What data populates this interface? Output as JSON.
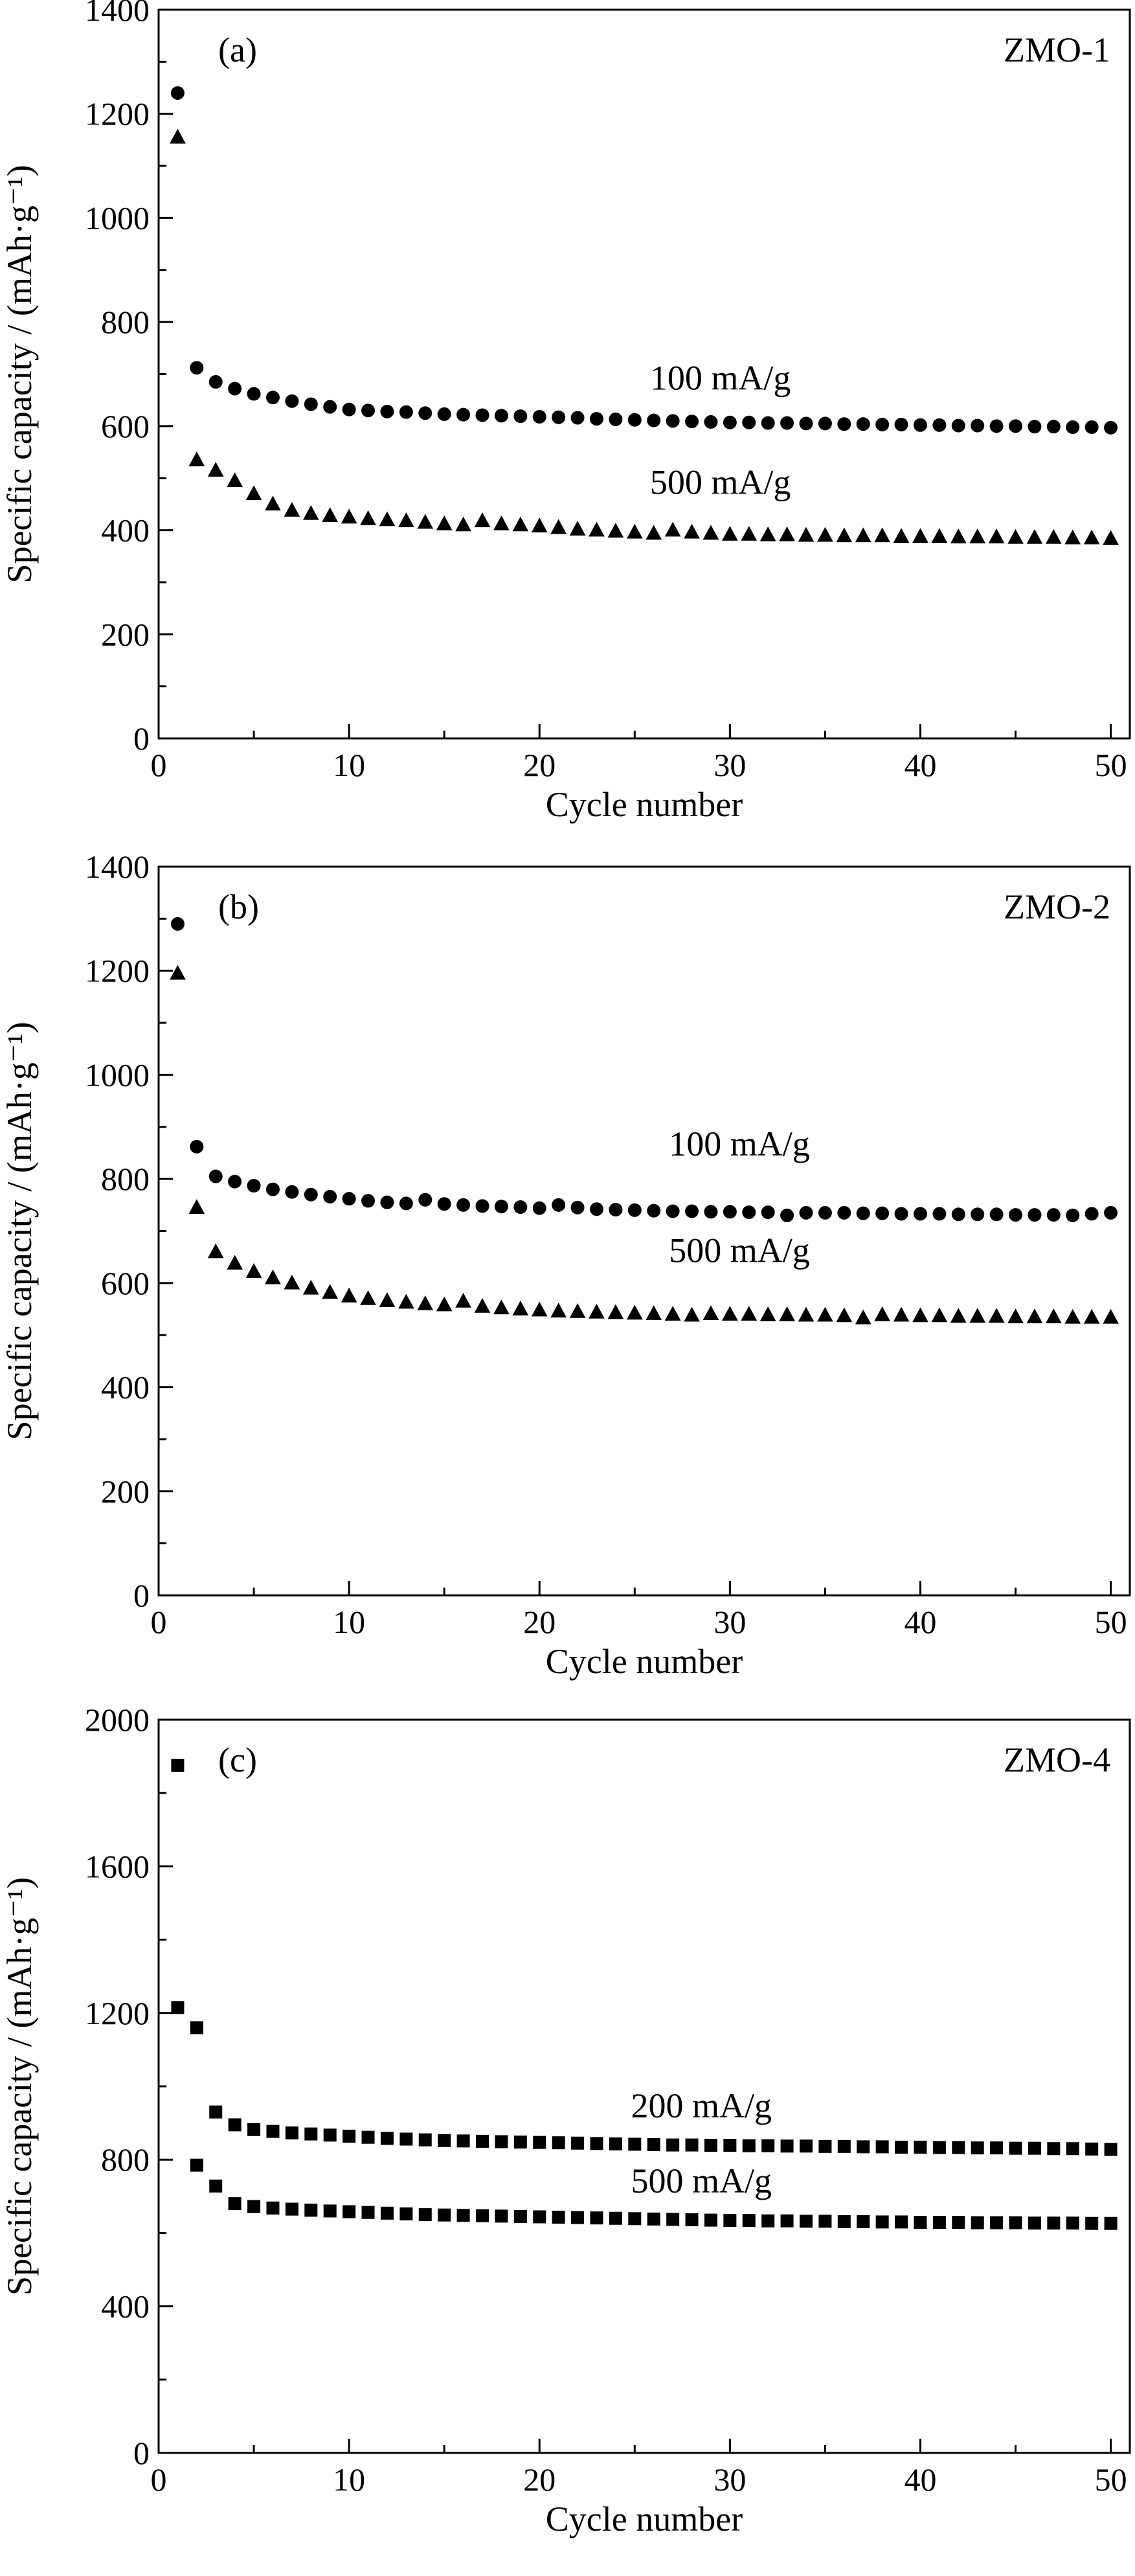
{
  "chart_data": [
    {
      "type": "scatter",
      "panel_label": "(a)",
      "sample_label": "ZMO-1",
      "xlabel": "Cycle number",
      "ylabel": "Specific capacity / (mAh·g⁻¹)",
      "xlim": [
        0,
        51
      ],
      "ylim": [
        0,
        1400
      ],
      "xticks": [
        0,
        10,
        20,
        30,
        40,
        50
      ],
      "yticks": [
        0,
        200,
        400,
        600,
        800,
        1000,
        1200,
        1400
      ],
      "series": [
        {
          "marker": "circle",
          "color": "#000000",
          "annotation": "100 mA/g",
          "x": [
            1,
            2,
            3,
            4,
            5,
            6,
            7,
            8,
            9,
            10,
            11,
            12,
            13,
            14,
            15,
            16,
            17,
            18,
            19,
            20,
            21,
            22,
            23,
            24,
            25,
            26,
            27,
            28,
            29,
            30,
            31,
            32,
            33,
            34,
            35,
            36,
            37,
            38,
            39,
            40,
            41,
            42,
            43,
            44,
            45,
            46,
            47,
            48,
            49,
            50
          ],
          "y": [
            1240,
            712,
            685,
            672,
            662,
            655,
            648,
            642,
            637,
            632,
            630,
            628,
            627,
            625,
            623,
            622,
            621,
            620,
            619,
            618,
            617,
            616,
            614,
            613,
            612,
            611,
            610,
            609,
            608,
            607,
            607,
            606,
            606,
            605,
            605,
            604,
            604,
            603,
            603,
            602,
            602,
            601,
            601,
            600,
            600,
            599,
            599,
            598,
            598,
            597
          ]
        },
        {
          "marker": "triangle",
          "color": "#000000",
          "annotation": "500 mA/g",
          "x": [
            1,
            2,
            3,
            4,
            5,
            6,
            7,
            8,
            9,
            10,
            11,
            12,
            13,
            14,
            15,
            16,
            17,
            18,
            19,
            20,
            21,
            22,
            23,
            24,
            25,
            26,
            27,
            28,
            29,
            30,
            31,
            32,
            33,
            34,
            35,
            36,
            37,
            38,
            39,
            40,
            41,
            42,
            43,
            44,
            45,
            46,
            47,
            48,
            49,
            50
          ],
          "y": [
            1155,
            535,
            515,
            495,
            470,
            450,
            438,
            432,
            428,
            425,
            422,
            420,
            418,
            415,
            412,
            410,
            418,
            412,
            410,
            408,
            405,
            402,
            400,
            398,
            396,
            394,
            400,
            396,
            394,
            392,
            392,
            391,
            391,
            390,
            390,
            389,
            389,
            389,
            388,
            388,
            388,
            387,
            387,
            387,
            386,
            386,
            386,
            385,
            385,
            384
          ]
        }
      ],
      "annotations": [
        {
          "text": "100 mA/g",
          "x": 29.5,
          "y": 670
        },
        {
          "text": "500 mA/g",
          "x": 29.5,
          "y": 470
        }
      ]
    },
    {
      "type": "scatter",
      "panel_label": "(b)",
      "sample_label": "ZMO-2",
      "xlabel": "Cycle number",
      "ylabel": "Specific capacity / (mAh·g⁻¹)",
      "xlim": [
        0,
        51
      ],
      "ylim": [
        0,
        1400
      ],
      "xticks": [
        0,
        10,
        20,
        30,
        40,
        50
      ],
      "yticks": [
        0,
        200,
        400,
        600,
        800,
        1000,
        1200,
        1400
      ],
      "series": [
        {
          "marker": "circle",
          "color": "#000000",
          "annotation": "100 mA/g",
          "x": [
            1,
            2,
            3,
            4,
            5,
            6,
            7,
            8,
            9,
            10,
            11,
            12,
            13,
            14,
            15,
            16,
            17,
            18,
            19,
            20,
            21,
            22,
            23,
            24,
            25,
            26,
            27,
            28,
            29,
            30,
            31,
            32,
            33,
            34,
            35,
            36,
            37,
            38,
            39,
            40,
            41,
            42,
            43,
            44,
            45,
            46,
            47,
            48,
            49,
            50
          ],
          "y": [
            1290,
            862,
            805,
            795,
            787,
            780,
            775,
            770,
            766,
            762,
            758,
            755,
            753,
            760,
            752,
            750,
            748,
            747,
            746,
            744,
            750,
            745,
            742,
            741,
            740,
            739,
            738,
            738,
            737,
            737,
            736,
            736,
            730,
            735,
            735,
            735,
            734,
            734,
            733,
            733,
            733,
            732,
            732,
            732,
            731,
            731,
            731,
            730,
            733,
            735
          ]
        },
        {
          "marker": "triangle",
          "color": "#000000",
          "annotation": "500 mA/g",
          "x": [
            1,
            2,
            3,
            4,
            5,
            6,
            7,
            8,
            9,
            10,
            11,
            12,
            13,
            14,
            15,
            16,
            17,
            18,
            19,
            20,
            21,
            22,
            23,
            24,
            25,
            26,
            27,
            28,
            29,
            30,
            31,
            32,
            33,
            34,
            35,
            36,
            37,
            38,
            39,
            40,
            41,
            42,
            43,
            44,
            45,
            46,
            47,
            48,
            49,
            50
          ],
          "y": [
            1195,
            745,
            660,
            638,
            622,
            610,
            600,
            590,
            582,
            575,
            570,
            566,
            563,
            560,
            558,
            565,
            555,
            552,
            550,
            548,
            546,
            545,
            544,
            543,
            542,
            541,
            540,
            538,
            541,
            540,
            540,
            539,
            539,
            538,
            538,
            537,
            533,
            539,
            538,
            537,
            537,
            536,
            536,
            536,
            535,
            535,
            535,
            534,
            534,
            534
          ]
        }
      ],
      "annotations": [
        {
          "text": "100 mA/g",
          "x": 30.5,
          "y": 845
        },
        {
          "text": "500 mA/g",
          "x": 30.5,
          "y": 640
        }
      ]
    },
    {
      "type": "scatter",
      "panel_label": "(c)",
      "sample_label": "ZMO-4",
      "xlabel": "Cycle number",
      "ylabel": "Specific capacity / (mAh·g⁻¹)",
      "xlim": [
        0,
        51
      ],
      "ylim": [
        0,
        2000
      ],
      "xticks": [
        0,
        10,
        20,
        30,
        40,
        50
      ],
      "yticks": [
        0,
        400,
        800,
        1200,
        1600,
        2000
      ],
      "series": [
        {
          "marker": "square",
          "color": "#000000",
          "annotation": "200 mA/g",
          "x": [
            1,
            2,
            3,
            4,
            5,
            6,
            7,
            8,
            9,
            10,
            11,
            12,
            13,
            14,
            15,
            16,
            17,
            18,
            19,
            20,
            21,
            22,
            23,
            24,
            25,
            26,
            27,
            28,
            29,
            30,
            31,
            32,
            33,
            34,
            35,
            36,
            37,
            38,
            39,
            40,
            41,
            42,
            43,
            44,
            45,
            46,
            47,
            48,
            49,
            50
          ],
          "y": [
            1875,
            1160,
            930,
            895,
            882,
            877,
            873,
            870,
            867,
            864,
            861,
            858,
            856,
            854,
            852,
            851,
            850,
            849,
            848,
            847,
            846,
            845,
            844,
            843,
            842,
            841,
            840,
            840,
            839,
            839,
            838,
            838,
            837,
            837,
            836,
            836,
            835,
            835,
            834,
            834,
            833,
            833,
            832,
            832,
            831,
            831,
            830,
            830,
            829,
            828
          ]
        },
        {
          "marker": "square",
          "color": "#000000",
          "annotation": "500 mA/g",
          "x": [
            1,
            2,
            3,
            4,
            5,
            6,
            7,
            8,
            9,
            10,
            11,
            12,
            13,
            14,
            15,
            16,
            17,
            18,
            19,
            20,
            21,
            22,
            23,
            24,
            25,
            26,
            27,
            28,
            29,
            30,
            31,
            32,
            33,
            34,
            35,
            36,
            37,
            38,
            39,
            40,
            41,
            42,
            43,
            44,
            45,
            46,
            47,
            48,
            49,
            50
          ],
          "y": [
            1215,
            785,
            728,
            680,
            672,
            668,
            665,
            662,
            660,
            658,
            656,
            654,
            652,
            650,
            649,
            648,
            647,
            646,
            645,
            644,
            643,
            642,
            641,
            640,
            639,
            638,
            637,
            636,
            635,
            634,
            634,
            633,
            633,
            632,
            632,
            631,
            631,
            630,
            630,
            629,
            629,
            629,
            628,
            628,
            628,
            627,
            627,
            627,
            626,
            626
          ]
        }
      ],
      "annotations": [
        {
          "text": "200 mA/g",
          "x": 28.5,
          "y": 915
        },
        {
          "text": "500 mA/g",
          "x": 28.5,
          "y": 710
        }
      ]
    }
  ]
}
